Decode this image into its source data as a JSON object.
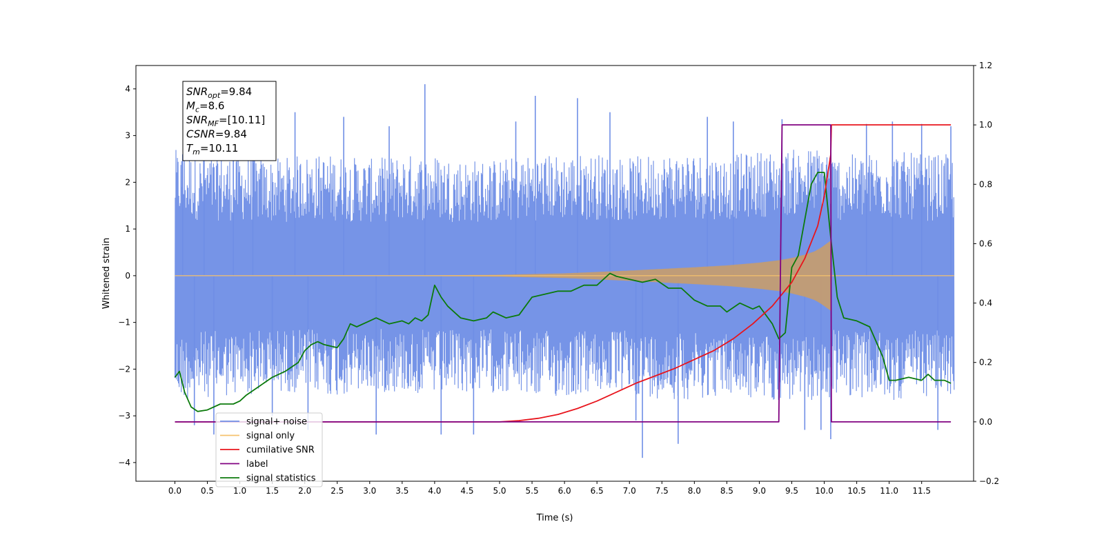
{
  "chart_data": {
    "type": "line",
    "xlabel": "Time (s)",
    "ylabel_left": "Whitened strain",
    "xlim": [
      -0.6,
      12.3
    ],
    "ylim_left": [
      -4.4,
      4.5
    ],
    "ylim_right": [
      -0.2,
      1.2
    ],
    "x_ticks": [
      0.0,
      0.5,
      1.0,
      1.5,
      2.0,
      2.5,
      3.0,
      3.5,
      4.0,
      4.5,
      5.0,
      5.5,
      6.0,
      6.5,
      7.0,
      7.5,
      8.0,
      8.5,
      9.0,
      9.5,
      10.0,
      10.5,
      11.0,
      11.5
    ],
    "x_tick_labels": [
      "0.0",
      "0.5",
      "1.0",
      "1.5",
      "2.0",
      "2.5",
      "3.0",
      "3.5",
      "4.0",
      "4.5",
      "5.0",
      "5.5",
      "6.0",
      "6.5",
      "7.0",
      "7.5",
      "8.0",
      "8.5",
      "9.0",
      "9.5",
      "10.0",
      "10.5",
      "11.0",
      "11.5"
    ],
    "y_ticks_left": [
      -4,
      -3,
      -2,
      -1,
      0,
      1,
      2,
      3,
      4
    ],
    "y_tick_labels_left": [
      "−4",
      "−3",
      "−2",
      "−1",
      "0",
      "1",
      "2",
      "3",
      "4"
    ],
    "y_ticks_right": [
      -0.2,
      0.0,
      0.2,
      0.4,
      0.6,
      0.8,
      1.0,
      1.2
    ],
    "y_tick_labels_right": [
      "−0.2",
      "0.0",
      "0.2",
      "0.4",
      "0.6",
      "0.8",
      "1.0",
      "1.2"
    ],
    "grid": false,
    "legend_position": "lower-left",
    "annotation_box": {
      "position": "top-left",
      "lines": [
        {
          "sym": "SNR",
          "sub": "opt",
          "rest": "=9.84"
        },
        {
          "sym": "M",
          "sub": "c",
          "rest": "=8.6"
        },
        {
          "sym": "SNR",
          "sub": "MF",
          "rest": "=[10.11]"
        },
        {
          "sym": "CSNR",
          "sub": "",
          "rest": "=9.84"
        },
        {
          "sym": "T",
          "sub": "m",
          "rest": "=10.11"
        }
      ]
    },
    "noise": {
      "x_range": [
        0.0,
        12.0
      ],
      "band_low": [
        -2.7,
        -2.6,
        -2.6,
        -2.5,
        -2.5,
        -2.6,
        -2.5,
        -2.5,
        -2.6,
        -2.5,
        -2.5,
        -2.6,
        -2.6,
        -2.5,
        -2.5,
        -2.6,
        -2.6,
        -2.5,
        -2.6,
        -2.6,
        -2.5,
        -2.6,
        -2.7,
        -2.6,
        -2.6
      ],
      "band_high": [
        2.7,
        2.6,
        2.6,
        2.5,
        2.6,
        2.6,
        2.5,
        2.6,
        2.6,
        2.5,
        2.5,
        2.6,
        2.6,
        2.6,
        2.5,
        2.6,
        2.6,
        2.5,
        2.6,
        2.6,
        2.6,
        2.6,
        2.7,
        2.6,
        2.6
      ],
      "spikes": [
        [
          0.12,
          2.6
        ],
        [
          0.3,
          -3.2
        ],
        [
          0.45,
          2.8
        ],
        [
          0.6,
          -3.4
        ],
        [
          0.9,
          3.0
        ],
        [
          1.2,
          3.1
        ],
        [
          1.5,
          -3.0
        ],
        [
          1.85,
          3.5
        ],
        [
          2.05,
          -3.3
        ],
        [
          2.6,
          3.4
        ],
        [
          3.1,
          -3.4
        ],
        [
          3.3,
          3.2
        ],
        [
          3.85,
          4.1
        ],
        [
          4.1,
          -3.4
        ],
        [
          4.6,
          -3.4
        ],
        [
          5.25,
          3.3
        ],
        [
          5.55,
          3.85
        ],
        [
          6.2,
          3.8
        ],
        [
          6.7,
          3.5
        ],
        [
          7.1,
          -3.1
        ],
        [
          7.2,
          -3.9
        ],
        [
          7.75,
          -3.6
        ],
        [
          8.2,
          3.4
        ],
        [
          8.6,
          3.3
        ],
        [
          9.35,
          3.35
        ],
        [
          9.7,
          -3.3
        ],
        [
          9.95,
          -3.3
        ],
        [
          10.1,
          -3.5
        ],
        [
          10.65,
          3.25
        ],
        [
          11.05,
          3.3
        ],
        [
          11.5,
          3.25
        ],
        [
          11.75,
          -3.3
        ],
        [
          11.95,
          3.2
        ]
      ]
    },
    "signal_envelope": {
      "x": [
        0.0,
        4.0,
        5.0,
        6.0,
        7.0,
        8.0,
        8.5,
        9.0,
        9.3,
        9.5,
        9.7,
        9.85,
        9.95,
        10.05,
        10.1,
        10.11,
        12.0
      ],
      "amp": [
        0.005,
        0.01,
        0.02,
        0.05,
        0.11,
        0.18,
        0.22,
        0.28,
        0.33,
        0.38,
        0.45,
        0.52,
        0.6,
        0.7,
        0.75,
        0.0,
        0.0
      ]
    },
    "series": [
      {
        "name": "signal+ noise",
        "color": "#6f8ee6",
        "axis": "left",
        "style": "noise"
      },
      {
        "name": "signal only",
        "color": "#f5c16c",
        "axis": "left",
        "style": "envelope"
      },
      {
        "name": "cumilative SNR",
        "color": "#e8141c",
        "axis": "right",
        "x": [
          0.0,
          4.5,
          5.0,
          5.3,
          5.6,
          5.9,
          6.2,
          6.5,
          6.8,
          7.1,
          7.4,
          7.7,
          8.0,
          8.3,
          8.6,
          8.9,
          9.2,
          9.5,
          9.7,
          9.9,
          10.0,
          10.1,
          10.11,
          11.95
        ],
        "values": [
          0.0,
          0.0,
          0.0,
          0.004,
          0.012,
          0.025,
          0.045,
          0.07,
          0.1,
          0.13,
          0.155,
          0.18,
          0.21,
          0.24,
          0.28,
          0.33,
          0.39,
          0.47,
          0.55,
          0.66,
          0.76,
          0.9,
          1.0,
          1.0
        ]
      },
      {
        "name": "label",
        "color": "#800080",
        "axis": "right",
        "x": [
          0.0,
          9.3,
          9.35,
          10.1,
          10.11,
          11.95
        ],
        "values": [
          0.0,
          0.0,
          1.0,
          1.0,
          0.0,
          0.0
        ]
      },
      {
        "name": "signal statistics",
        "color": "#0b7a0b",
        "axis": "right",
        "x": [
          0.0,
          0.07,
          0.15,
          0.25,
          0.35,
          0.5,
          0.7,
          0.9,
          1.0,
          1.1,
          1.3,
          1.5,
          1.7,
          1.9,
          2.0,
          2.1,
          2.2,
          2.3,
          2.5,
          2.6,
          2.7,
          2.8,
          3.0,
          3.1,
          3.3,
          3.5,
          3.6,
          3.7,
          3.8,
          3.9,
          4.0,
          4.1,
          4.2,
          4.4,
          4.6,
          4.8,
          4.9,
          5.1,
          5.3,
          5.5,
          5.7,
          5.9,
          6.1,
          6.3,
          6.5,
          6.7,
          6.8,
          7.0,
          7.2,
          7.4,
          7.6,
          7.8,
          8.0,
          8.2,
          8.4,
          8.5,
          8.7,
          8.9,
          9.0,
          9.2,
          9.3,
          9.4,
          9.5,
          9.6,
          9.7,
          9.8,
          9.9,
          10.0,
          10.1,
          10.2,
          10.3,
          10.5,
          10.7,
          10.9,
          11.0,
          11.1,
          11.3,
          11.5,
          11.6,
          11.7,
          11.85,
          11.95
        ],
        "values": [
          0.15,
          0.17,
          0.1,
          0.05,
          0.035,
          0.04,
          0.06,
          0.06,
          0.07,
          0.09,
          0.12,
          0.15,
          0.17,
          0.2,
          0.24,
          0.26,
          0.27,
          0.26,
          0.25,
          0.28,
          0.33,
          0.32,
          0.34,
          0.35,
          0.33,
          0.34,
          0.33,
          0.35,
          0.34,
          0.36,
          0.46,
          0.42,
          0.39,
          0.35,
          0.34,
          0.35,
          0.37,
          0.35,
          0.36,
          0.42,
          0.43,
          0.44,
          0.44,
          0.46,
          0.46,
          0.5,
          0.49,
          0.48,
          0.47,
          0.48,
          0.45,
          0.45,
          0.41,
          0.39,
          0.39,
          0.37,
          0.4,
          0.38,
          0.39,
          0.33,
          0.28,
          0.3,
          0.52,
          0.56,
          0.68,
          0.8,
          0.84,
          0.84,
          0.62,
          0.42,
          0.35,
          0.34,
          0.32,
          0.22,
          0.14,
          0.14,
          0.15,
          0.14,
          0.16,
          0.14,
          0.14,
          0.13
        ]
      }
    ],
    "legend_entries": [
      {
        "label": "signal+ noise",
        "color": "#6f8ee6"
      },
      {
        "label": "signal only",
        "color": "#f5c16c"
      },
      {
        "label": "cumilative SNR",
        "color": "#e8141c"
      },
      {
        "label": "label",
        "color": "#800080"
      },
      {
        "label": "signal statistics",
        "color": "#0b7a0b"
      }
    ]
  }
}
